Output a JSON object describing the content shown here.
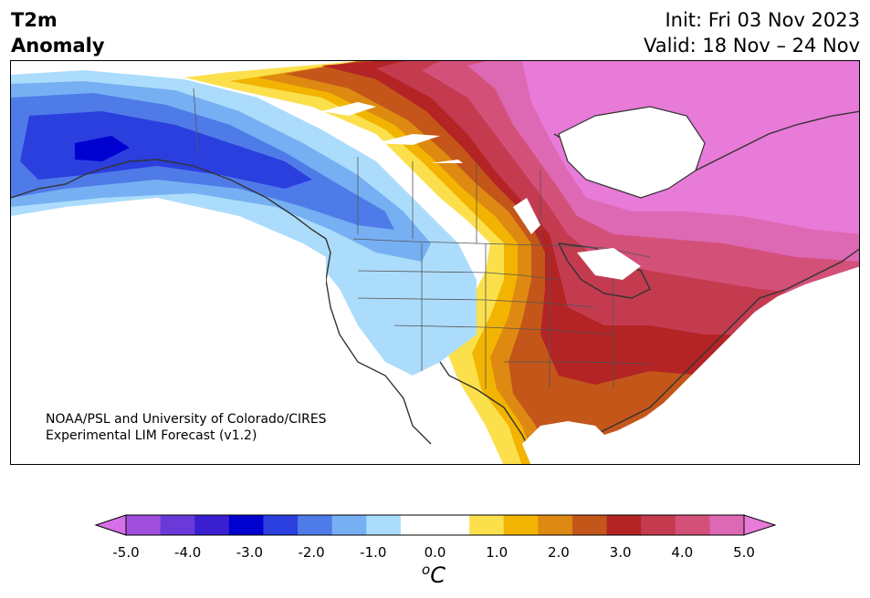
{
  "header": {
    "title_line1": "T2m",
    "title_line2": "Anomaly",
    "init": "Init: Fri 03 Nov 2023",
    "valid": "Valid: 18 Nov – 24 Nov"
  },
  "credit": {
    "line1": "NOAA/PSL and University of Colorado/CIRES",
    "line2": "Experimental LIM Forecast (v1.2)"
  },
  "colorbar": {
    "ticks": [
      "-5.0",
      "-4.0",
      "-3.0",
      "-2.0",
      "-1.0",
      "0.0",
      "1.0",
      "2.0",
      "3.0",
      "4.0",
      "5.0"
    ],
    "unit_base": "o",
    "unit_main": "C",
    "colors": [
      "#d86fe8",
      "#a04fdc",
      "#6a3ad8",
      "#3a1fd0",
      "#0000d0",
      "#2b3fde",
      "#4f7be8",
      "#76b0f3",
      "#acdcfb",
      "#ffffff",
      "#ffffff",
      "#fbe04c",
      "#f2b400",
      "#de8a12",
      "#c4561a",
      "#b42424",
      "#c43b50",
      "#d35079",
      "#dd68b3",
      "#e87ad8"
    ]
  },
  "map": {
    "region": "North America",
    "variable": "2m temperature anomaly"
  }
}
